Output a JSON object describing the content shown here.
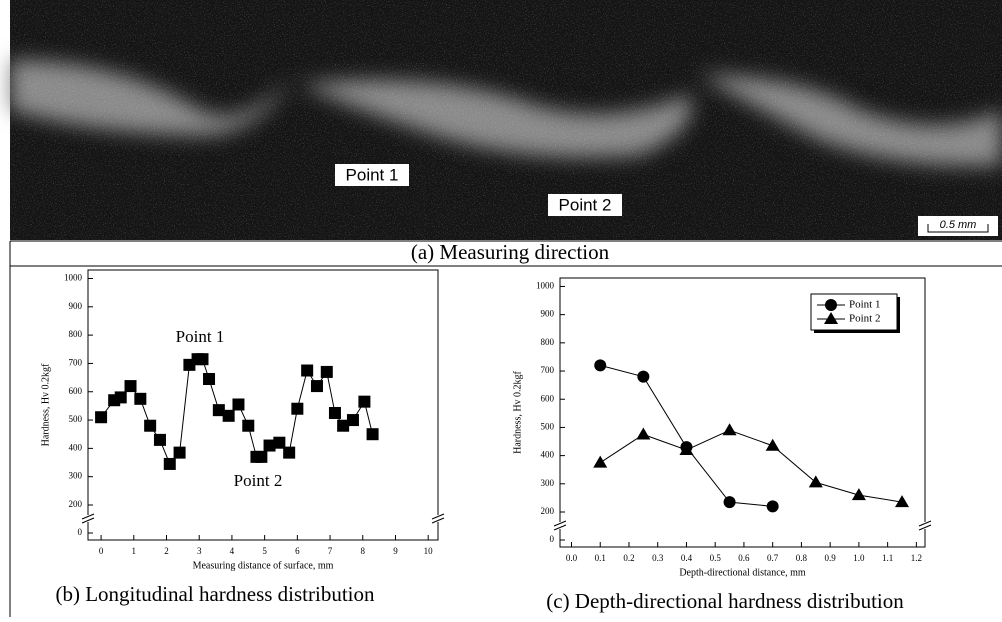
{
  "figure_a": {
    "labels": [
      "Point 1",
      "Point 2"
    ],
    "scale_bar": "0.5 mm",
    "caption": "(a) Measuring direction"
  },
  "chart_data": [
    {
      "type": "line",
      "caption": "(b) Longitudinal hardness distribution",
      "x_label": "Measuring distance of surface, mm",
      "y_label": "Hardness, Hv 0.2kgf",
      "annotations": [
        "Point 1",
        "Point 2"
      ],
      "x": [
        0,
        0.4,
        0.6,
        0.9,
        1.2,
        1.5,
        1.8,
        2.1,
        2.4,
        2.7,
        2.95,
        3.1,
        3.3,
        3.6,
        3.9,
        4.2,
        4.5,
        4.75,
        4.9,
        5.15,
        5.45,
        5.75,
        6.0,
        6.3,
        6.6,
        6.9,
        7.15,
        7.4,
        7.7,
        8.05,
        8.3
      ],
      "values": [
        510,
        570,
        580,
        620,
        575,
        480,
        430,
        345,
        385,
        695,
        715,
        715,
        645,
        535,
        515,
        555,
        480,
        370,
        370,
        410,
        420,
        385,
        540,
        675,
        620,
        670,
        525,
        480,
        500,
        565,
        450
      ],
      "color": "#000000",
      "marker": "square",
      "xlim": [
        -0.4,
        10.3
      ],
      "xticks": [
        0,
        1,
        2,
        3,
        4,
        5,
        6,
        7,
        8,
        9,
        10
      ],
      "ylim": [
        0,
        1030
      ],
      "yticks": [
        0,
        200,
        300,
        400,
        500,
        600,
        700,
        800,
        900,
        1000
      ],
      "axis_break": [
        0,
        200
      ]
    },
    {
      "type": "line",
      "caption": "(c) Depth-directional hardness distribution",
      "x_label": "Depth-directional distance, mm",
      "y_label": "Hardness, Hv 0.2kgf",
      "series": [
        {
          "name": "Point 1",
          "color": "#000000",
          "marker": "circle",
          "x": [
            0.1,
            0.25,
            0.4,
            0.55,
            0.7
          ],
          "values": [
            720,
            680,
            430,
            235,
            220
          ]
        },
        {
          "name": "Point 2",
          "color": "#000000",
          "marker": "triangle",
          "x": [
            0.1,
            0.25,
            0.4,
            0.55,
            0.7,
            0.85,
            1.0,
            1.15
          ],
          "values": [
            375,
            475,
            420,
            490,
            435,
            305,
            260,
            235
          ]
        }
      ],
      "legend": "upper right",
      "xlim": [
        -0.04,
        1.23
      ],
      "xticks": [
        {
          "value": 0,
          "label": "0.0"
        },
        0.1,
        0.2,
        0.3,
        0.4,
        0.5,
        0.6,
        0.7,
        0.8,
        0.9,
        {
          "value": 1,
          "label": "1.0"
        },
        1.1,
        1.2
      ],
      "ylim": [
        0,
        1030
      ],
      "yticks": [
        0,
        200,
        300,
        400,
        500,
        600,
        700,
        800,
        900,
        1000
      ],
      "axis_break": [
        0,
        200
      ]
    }
  ]
}
